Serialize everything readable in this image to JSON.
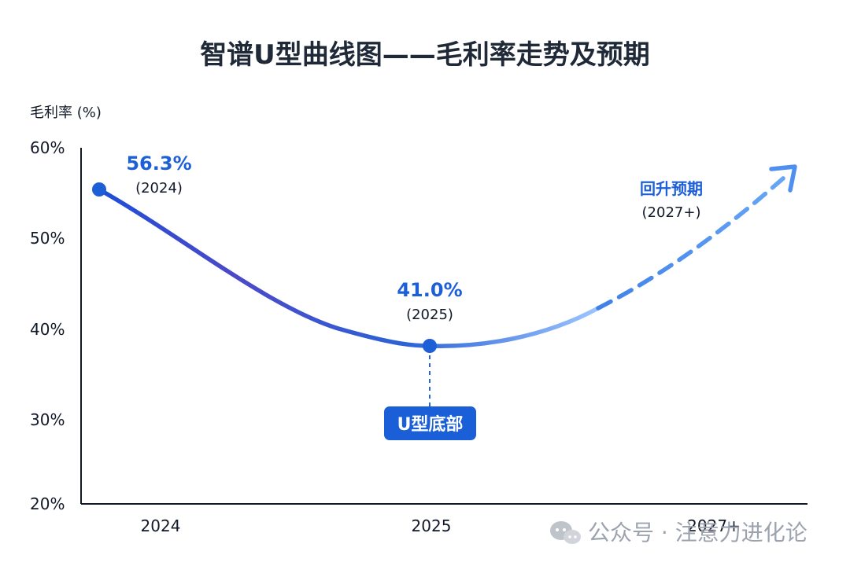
{
  "chart_data": {
    "type": "line",
    "title": "智谱U型曲线图——毛利率走势及预期",
    "ylabel": "毛利率 (%)",
    "yticks": [
      "20%",
      "30%",
      "40%",
      "50%",
      "60%"
    ],
    "ylim": [
      20,
      60
    ],
    "categories": [
      "2024",
      "2025",
      "2027+"
    ],
    "points": [
      {
        "category": "2024",
        "value": 56.3,
        "label": "56.3%",
        "sub": "(2024)"
      },
      {
        "category": "2025",
        "value": 41.0,
        "label": "41.0%",
        "sub": "(2025)"
      }
    ],
    "forecast": {
      "label": "回升预期",
      "sub": "(2027+)"
    },
    "annotation": {
      "text": "U型底部"
    },
    "colors": {
      "primary": "#1d5fd6",
      "light": "#5b9cf0",
      "dark": "#1d4ed8",
      "axis": "#111827",
      "badge": "#1a5fd8",
      "label": "#1d5fd6"
    }
  },
  "watermark": {
    "text": "公众号 · 注意力进化论",
    "icon": "wechat-icon"
  }
}
